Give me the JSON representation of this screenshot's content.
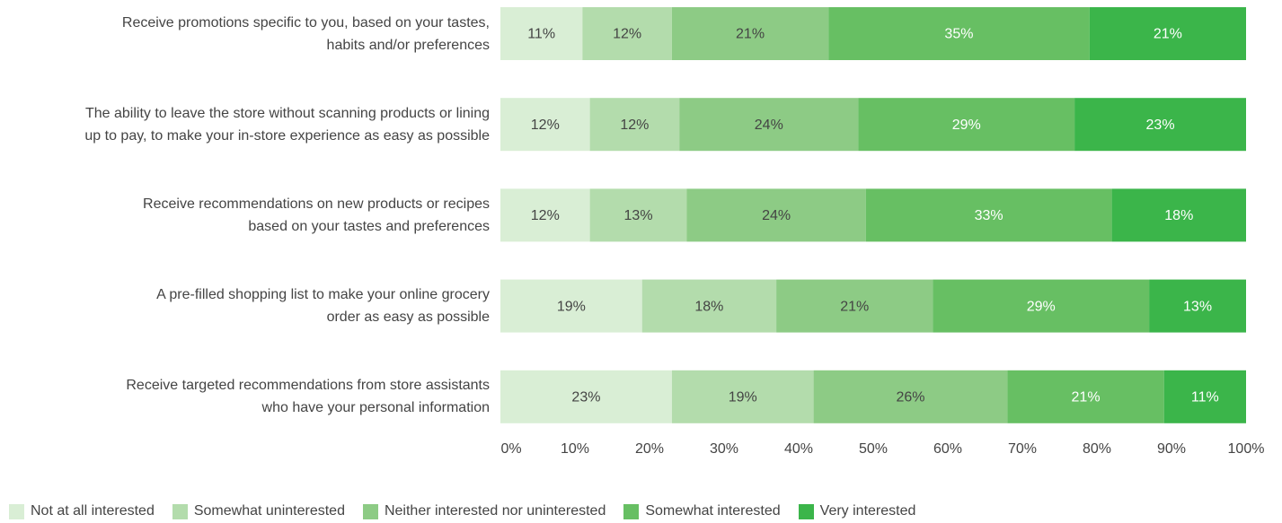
{
  "chart_data": {
    "type": "stacked-bar-horizontal",
    "categories": [
      "Receive promotions specific to you, based on your tastes,\nhabits and/or preferences",
      "The ability to leave the store without scanning products or lining\nup to pay, to make your in-store experience as easy as possible",
      "Receive recommendations on new products or recipes\nbased on your tastes and preferences",
      "A pre-filled shopping list to make your online grocery\norder as easy as possible",
      "Receive targeted recommendations from store assistants\nwho have your personal information"
    ],
    "series": [
      {
        "name": "Not at all interested",
        "color": "#d9eed5",
        "values": [
          11,
          12,
          12,
          19,
          23
        ],
        "value_labels": [
          "11%",
          "12%",
          "12%",
          "19%",
          "23%"
        ]
      },
      {
        "name": "Somewhat uninterested",
        "color": "#b3dcac",
        "values": [
          12,
          12,
          13,
          18,
          19
        ],
        "value_labels": [
          "12%",
          "12%",
          "13%",
          "18%",
          "19%"
        ]
      },
      {
        "name": "Neither interested nor uninterested",
        "color": "#8dcb85",
        "values": [
          21,
          24,
          24,
          21,
          26
        ],
        "value_labels": [
          "21%",
          "24%",
          "24%",
          "21%",
          "26%"
        ]
      },
      {
        "name": "Somewhat interested",
        "color": "#67bf63",
        "values": [
          35,
          29,
          33,
          29,
          21
        ],
        "value_labels": [
          "35%",
          "29%",
          "33%",
          "29%",
          "21%"
        ]
      },
      {
        "name": "Very interested",
        "color": "#3bb54a",
        "values": [
          21,
          23,
          18,
          13,
          11
        ],
        "value_labels": [
          "21%",
          "23%",
          "18%",
          "13%",
          "11%"
        ]
      }
    ],
    "xlim": [
      0,
      100
    ],
    "xticks": [
      {
        "value": 0,
        "label": "0%"
      },
      {
        "value": 10,
        "label": "10%"
      },
      {
        "value": 20,
        "label": "20%"
      },
      {
        "value": 30,
        "label": "30%"
      },
      {
        "value": 40,
        "label": "40%"
      },
      {
        "value": 50,
        "label": "50%"
      },
      {
        "value": 60,
        "label": "60%"
      },
      {
        "value": 70,
        "label": "70%"
      },
      {
        "value": 80,
        "label": "80%"
      },
      {
        "value": 90,
        "label": "90%"
      },
      {
        "value": 100,
        "label": "100%"
      }
    ],
    "legend": "bottom-left"
  }
}
